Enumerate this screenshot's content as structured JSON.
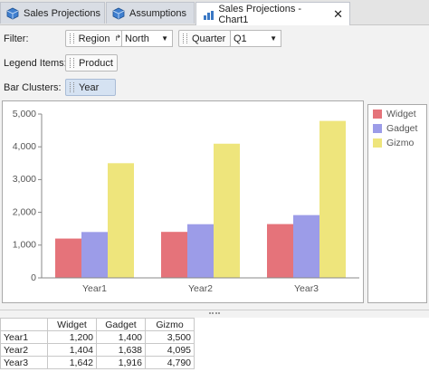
{
  "tabs": [
    {
      "label": "Sales Projections"
    },
    {
      "label": "Assumptions"
    },
    {
      "label": "Sales Projections - Chart1",
      "active": true
    }
  ],
  "filter_bar": {
    "filter_label": "Filter:",
    "region_field": "Region",
    "region_value": "North",
    "quarter_field": "Quarter",
    "quarter_value": "Q1",
    "legend_items_label": "Legend Items:",
    "legend_field": "Product",
    "bar_clusters_label": "Bar Clusters:",
    "cluster_field": "Year"
  },
  "chart_data": {
    "type": "bar",
    "categories": [
      "Year1",
      "Year2",
      "Year3"
    ],
    "series": [
      {
        "name": "Widget",
        "color": "#e5737a",
        "values": [
          1200,
          1404,
          1642
        ]
      },
      {
        "name": "Gadget",
        "color": "#9c9ce8",
        "values": [
          1400,
          1638,
          1916
        ]
      },
      {
        "name": "Gizmo",
        "color": "#eee57c",
        "values": [
          3500,
          4095,
          4790
        ]
      }
    ],
    "ylim": [
      0,
      5000
    ],
    "yticks": [
      0,
      {
        "value": 1000,
        "label": "1,000"
      },
      {
        "value": 2000,
        "label": "2,000"
      },
      {
        "value": 3000,
        "label": "3,000"
      },
      {
        "value": 4000,
        "label": "4,000"
      },
      {
        "value": 5000,
        "label": "5,000"
      }
    ],
    "grid": false
  },
  "table": {
    "columns": [
      "Widget",
      "Gadget",
      "Gizmo"
    ],
    "rows": [
      [
        "Year1",
        "1,200",
        "1,400",
        "3,500"
      ],
      [
        "Year2",
        "1,404",
        "1,638",
        "4,095"
      ],
      [
        "Year3",
        "1,642",
        "1,916",
        "4,790"
      ]
    ]
  }
}
